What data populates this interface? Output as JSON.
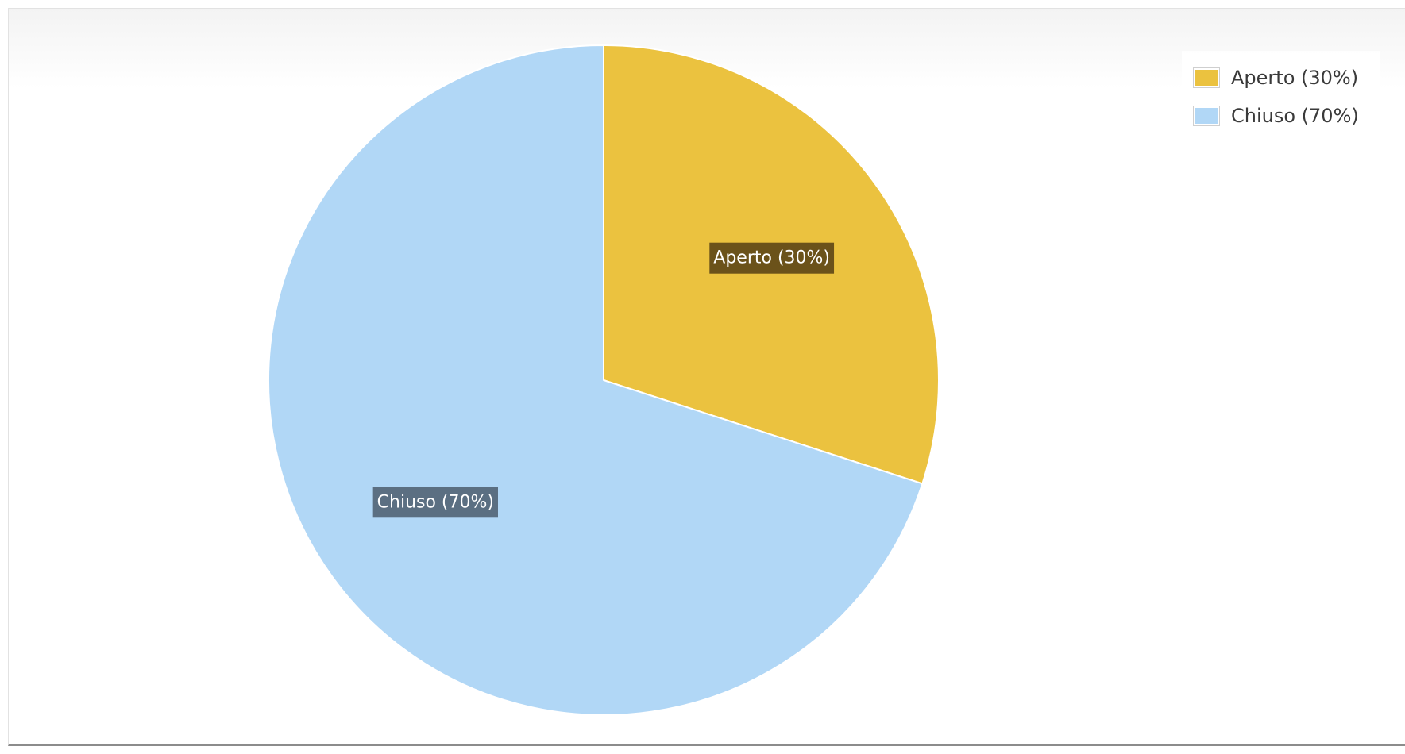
{
  "chart_data": {
    "type": "pie",
    "title": "",
    "slices": [
      {
        "label": "Aperto (30%)",
        "name": "Aperto",
        "value": 30,
        "color": "#ebc23f",
        "label_bg": "#6b521a"
      },
      {
        "label": "Chiuso (70%)",
        "name": "Chiuso",
        "value": 70,
        "color": "#b1d7f6",
        "label_bg": "#5b6f82"
      }
    ],
    "start_angle": "12 o'clock",
    "direction": "clockwise",
    "legend": {
      "placement": "top-right",
      "items": [
        {
          "label": "Aperto (30%)",
          "color": "#ebc23f"
        },
        {
          "label": "Chiuso (70%)",
          "color": "#b1d7f6"
        }
      ]
    }
  }
}
